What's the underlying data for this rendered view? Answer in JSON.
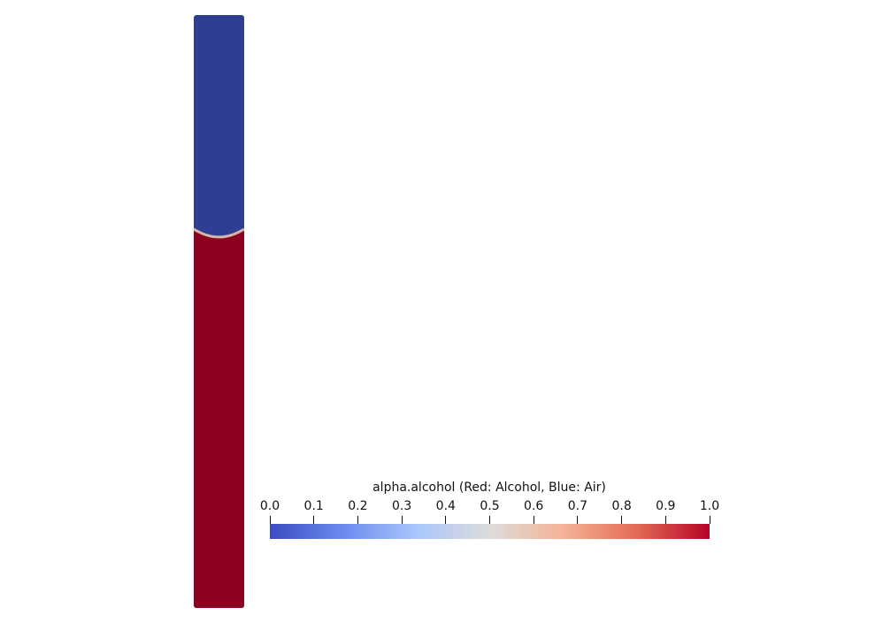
{
  "visualization": {
    "field": "alpha.alcohol",
    "interface_level": 0.37,
    "colors": {
      "air": "#2f3e93",
      "alcohol": "#8d0120",
      "interface": "#e0c8b0",
      "background": "#ffffff"
    },
    "colormap_stops": [
      "#3b4cc0",
      "#6a8bef",
      "#a9c6fd",
      "#dddcdb",
      "#f5b396",
      "#e36b55",
      "#b40426"
    ]
  },
  "colorbar": {
    "title": "alpha.alcohol (Red: Alcohol, Blue: Air)",
    "ticks": [
      "0.0",
      "0.1",
      "0.2",
      "0.3",
      "0.4",
      "0.5",
      "0.6",
      "0.7",
      "0.8",
      "0.9",
      "1.0"
    ],
    "range": [
      0.0,
      1.0
    ]
  }
}
